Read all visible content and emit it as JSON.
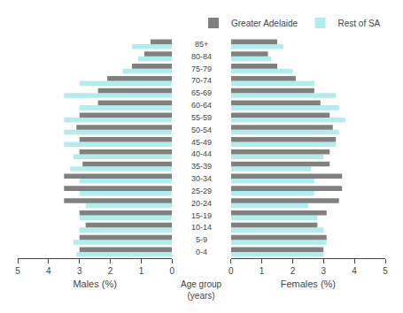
{
  "chart_data": [
    {
      "type": "bar",
      "orientation": "horizontal",
      "xlabel": "Males (%)",
      "ylabel": "Age group\n(years)",
      "categories": [
        "0-4",
        "5-9",
        "10-14",
        "15-19",
        "20-24",
        "25-29",
        "30-34",
        "35-39",
        "40-44",
        "45-49",
        "50-54",
        "55-59",
        "60-64",
        "65-69",
        "70-74",
        "75-79",
        "80-84",
        "85+"
      ],
      "series": [
        {
          "name": "Greater Adelaide",
          "color": "#808080",
          "values": [
            3.0,
            3.0,
            2.8,
            3.0,
            3.5,
            3.5,
            3.5,
            2.9,
            3.0,
            3.0,
            3.1,
            3.0,
            2.4,
            2.4,
            2.1,
            1.3,
            0.9,
            0.7
          ]
        },
        {
          "name": "Rest of SA",
          "color": "#b3ecec",
          "values": [
            3.1,
            3.2,
            3.0,
            3.0,
            2.8,
            3.0,
            3.0,
            3.3,
            3.2,
            3.5,
            3.5,
            3.5,
            3.0,
            3.5,
            3.0,
            1.6,
            1.1,
            1.3
          ]
        }
      ],
      "xlim": [
        5,
        0
      ],
      "xticks": [
        5,
        4,
        3,
        2,
        1,
        0
      ],
      "grid": false,
      "legend": "upper right"
    },
    {
      "type": "bar",
      "orientation": "horizontal",
      "xlabel": "Females (%)",
      "categories": [
        "0-4",
        "5-9",
        "10-14",
        "15-19",
        "20-24",
        "25-29",
        "30-34",
        "35-39",
        "40-44",
        "45-49",
        "50-54",
        "55-59",
        "60-64",
        "65-69",
        "70-74",
        "75-79",
        "80-84",
        "85+"
      ],
      "series": [
        {
          "name": "Greater Adelaide",
          "color": "#808080",
          "values": [
            3.0,
            3.1,
            2.8,
            3.1,
            3.5,
            3.6,
            3.6,
            3.2,
            3.2,
            3.4,
            3.3,
            3.2,
            2.9,
            2.7,
            2.1,
            1.5,
            1.2,
            1.5
          ]
        },
        {
          "name": "Rest of SA",
          "color": "#b3ecec",
          "values": [
            3.0,
            3.1,
            3.0,
            2.8,
            2.5,
            2.7,
            2.7,
            2.6,
            3.0,
            3.4,
            3.5,
            3.7,
            3.5,
            3.4,
            2.7,
            2.0,
            1.3,
            1.7
          ]
        }
      ],
      "xlim": [
        0,
        5
      ],
      "xticks": [
        0,
        1,
        2,
        3,
        4,
        5
      ],
      "grid": false
    }
  ]
}
